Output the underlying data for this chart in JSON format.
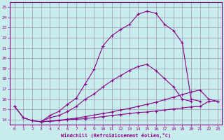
{
  "xlabel": "Windchill (Refroidissement éolien,°C)",
  "bg_color": "#c8ecec",
  "grid_color": "#9999bb",
  "line_color": "#880088",
  "xlim": [
    -0.5,
    23.5
  ],
  "ylim": [
    13.5,
    25.5
  ],
  "xticks": [
    0,
    1,
    2,
    3,
    4,
    5,
    6,
    7,
    8,
    9,
    10,
    11,
    12,
    13,
    14,
    15,
    16,
    17,
    18,
    19,
    20,
    21,
    22,
    23
  ],
  "yticks": [
    14,
    15,
    16,
    17,
    18,
    19,
    20,
    21,
    22,
    23,
    24,
    25
  ],
  "line1_x": [
    0,
    1,
    2,
    3,
    4,
    5,
    6,
    7,
    8,
    9,
    10,
    11,
    12,
    13,
    14,
    15,
    16,
    17,
    18,
    19,
    20,
    21
  ],
  "line1_y": [
    15.3,
    14.2,
    13.9,
    13.8,
    14.4,
    14.8,
    15.5,
    16.1,
    17.5,
    18.9,
    21.2,
    22.2,
    22.8,
    23.3,
    24.3,
    24.6,
    24.4,
    23.3,
    22.7,
    21.5,
    16.0,
    15.8
  ],
  "line2_x": [
    0,
    1,
    2,
    3,
    4,
    5,
    6,
    7,
    8,
    9,
    10,
    11,
    12,
    13,
    14,
    15,
    16,
    17,
    18,
    19,
    20,
    21,
    22,
    23
  ],
  "line2_y": [
    15.3,
    14.2,
    13.9,
    13.8,
    14.2,
    14.4,
    14.8,
    15.3,
    16.0,
    16.5,
    17.2,
    17.8,
    18.3,
    18.8,
    19.2,
    19.4,
    18.8,
    18.0,
    17.2,
    16.0,
    15.8,
    null,
    null,
    null
  ],
  "line3_x": [
    3,
    4,
    5,
    6,
    7,
    8,
    9,
    10,
    11,
    12,
    13,
    14,
    15,
    16,
    17,
    18,
    19,
    20,
    21,
    22,
    23
  ],
  "line3_y": [
    13.8,
    13.85,
    13.9,
    14.0,
    14.05,
    14.1,
    14.2,
    14.3,
    14.4,
    14.5,
    14.6,
    14.7,
    14.75,
    14.85,
    14.95,
    15.05,
    15.15,
    15.25,
    15.3,
    15.8,
    15.8
  ],
  "line4_x": [
    3,
    4,
    5,
    6,
    7,
    8,
    9,
    10,
    11,
    12,
    13,
    14,
    15,
    16,
    17,
    18,
    19,
    20,
    21,
    22,
    23
  ],
  "line4_y": [
    13.8,
    13.85,
    13.95,
    14.05,
    14.15,
    14.3,
    14.45,
    14.6,
    14.75,
    14.95,
    15.1,
    15.3,
    15.5,
    15.7,
    15.95,
    16.2,
    16.45,
    16.7,
    16.9,
    16.0,
    15.8
  ]
}
